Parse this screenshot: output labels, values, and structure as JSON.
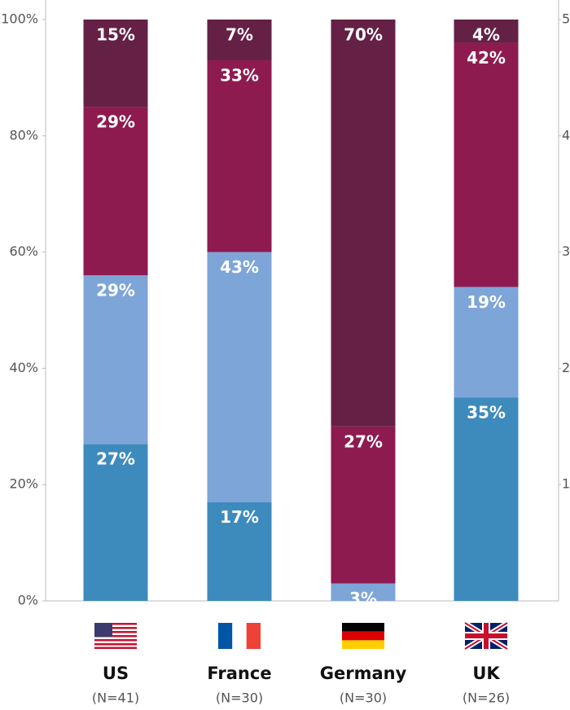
{
  "chart_data": {
    "type": "stacked_bar",
    "categories": [
      "US",
      "France",
      "Germany",
      "UK"
    ],
    "sublabels": [
      "(N=41)",
      "(N=30)",
      "(N=30)",
      "(N=26)"
    ],
    "series": [
      {
        "color": "#3d8bbd",
        "values": [
          27,
          17,
          null,
          35
        ],
        "value_labels": [
          "27%",
          "17%",
          null,
          "35%"
        ]
      },
      {
        "color": "#7ea5d8",
        "values": [
          29,
          43,
          3,
          19
        ],
        "value_labels": [
          "29%",
          "43%",
          "3%",
          "19%"
        ]
      },
      {
        "color": "#8e1b50",
        "values": [
          29,
          33,
          27,
          42
        ],
        "value_labels": [
          "29%",
          "33%",
          "27%",
          "42%"
        ]
      },
      {
        "color": "#652045",
        "values": [
          15,
          7,
          70,
          4
        ],
        "value_labels": [
          "15%",
          "7%",
          "70%",
          "4%"
        ]
      }
    ],
    "ylim": [
      0,
      100
    ],
    "yticks": [
      {
        "value": 0,
        "label": "0%"
      },
      {
        "value": 20,
        "label": "20%"
      },
      {
        "value": 40,
        "label": "40%"
      },
      {
        "value": 60,
        "label": "60%"
      },
      {
        "value": 80,
        "label": "80%"
      },
      {
        "value": 100,
        "label": "100%"
      }
    ],
    "y2lim": [
      0,
      5
    ],
    "y2ticks": [
      1,
      2,
      3,
      4,
      5
    ]
  }
}
